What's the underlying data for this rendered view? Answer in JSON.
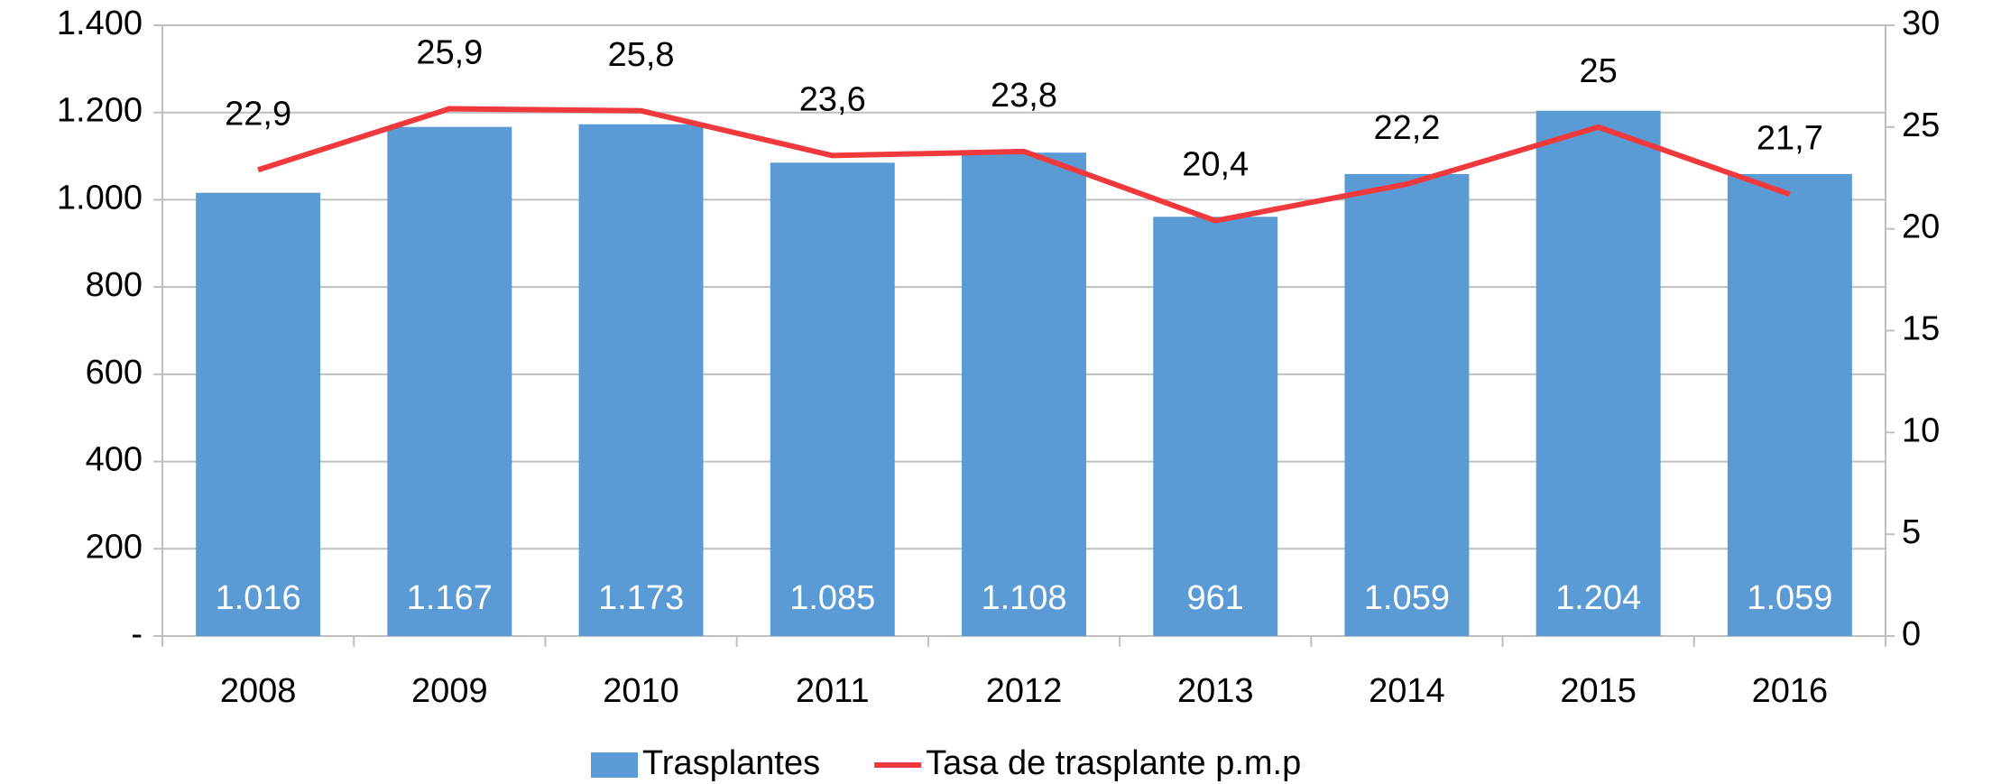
{
  "chart_data": {
    "type": "bar",
    "categories": [
      "2008",
      "2009",
      "2010",
      "2011",
      "2012",
      "2013",
      "2014",
      "2015",
      "2016"
    ],
    "series": [
      {
        "name": "Trasplantes",
        "type": "bar",
        "color": "#5b9bd5",
        "values": [
          1016,
          1167,
          1173,
          1085,
          1108,
          961,
          1059,
          1204,
          1059
        ],
        "value_labels": [
          "1.016",
          "1.167",
          "1.173",
          "1.085",
          "1.108",
          "961",
          "1.059",
          "1.204",
          "1.059"
        ]
      },
      {
        "name": "Tasa de trasplante p.m.p",
        "type": "line",
        "axis": "y2",
        "color": "#f0393c",
        "values": [
          22.9,
          25.9,
          25.8,
          23.6,
          23.8,
          20.4,
          22.2,
          25,
          21.7
        ],
        "value_labels": [
          "22,9",
          "25,9",
          "25,8",
          "23,6",
          "23,8",
          "20,4",
          "22,2",
          "25",
          "21,7"
        ]
      }
    ],
    "ylim": [
      0,
      1400
    ],
    "yticks": [
      {
        "value": 0,
        "label": "-"
      },
      200,
      400,
      600,
      800,
      {
        "value": 1000,
        "label": "1.000"
      },
      {
        "value": 1200,
        "label": "1.200"
      },
      {
        "value": 1400,
        "label": "1.400"
      }
    ],
    "y2lim": [
      0,
      30
    ],
    "y2ticks": [
      0,
      5,
      10,
      15,
      20,
      25,
      30
    ],
    "grid": true,
    "legend": "bottom"
  }
}
